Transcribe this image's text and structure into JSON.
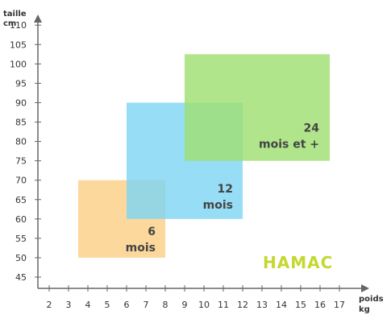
{
  "chart_data": {
    "type": "area",
    "xlabel": [
      "poids",
      "kg"
    ],
    "ylabel": [
      "taille",
      "cm"
    ],
    "x_ticks": [
      2,
      3,
      4,
      5,
      6,
      7,
      8,
      9,
      10,
      11,
      12,
      13,
      14,
      15,
      16,
      17
    ],
    "y_ticks": [
      45,
      50,
      55,
      60,
      65,
      70,
      75,
      80,
      85,
      90,
      95,
      100,
      105,
      110
    ],
    "xlim": [
      1.3,
      17.8
    ],
    "ylim": [
      42,
      114
    ],
    "grid": false,
    "ranges": [
      {
        "label": [
          "6",
          "mois"
        ],
        "x": [
          3.5,
          8
        ],
        "y": [
          50,
          70
        ],
        "color": "#fbcf86"
      },
      {
        "label": [
          "12",
          "mois"
        ],
        "x": [
          6,
          12
        ],
        "y": [
          60,
          90
        ],
        "color": "#7fd6f3"
      },
      {
        "label": [
          "24",
          "mois et +"
        ],
        "x": [
          9,
          16.5
        ],
        "y": [
          75,
          102.5
        ],
        "color": "#9fdf73"
      }
    ]
  },
  "brand": {
    "logo_text": "HAMAC",
    "color": "#c4d82f"
  }
}
